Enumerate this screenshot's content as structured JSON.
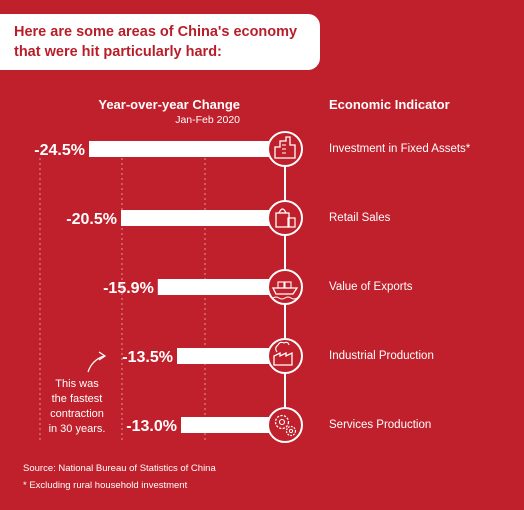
{
  "title": {
    "line1": "Here are some areas of China's economy",
    "line2": "that were hit particularly hard:"
  },
  "headers": {
    "change": "Year-over-year Change",
    "period": "Jan-Feb 2020",
    "indicator": "Economic Indicator"
  },
  "colors": {
    "background": "#c0202b",
    "bar": "#ffffff",
    "title_text": "#b81e2a"
  },
  "chart_data": {
    "type": "bar",
    "orientation": "horizontal",
    "categories": [
      "Investment in Fixed Assets*",
      "Retail Sales",
      "Value of Exports",
      "Industrial Production",
      "Services Production"
    ],
    "values": [
      -24.5,
      -20.5,
      -15.9,
      -13.5,
      -13.0
    ],
    "value_labels": [
      "-24.5%",
      "-20.5%",
      "-15.9%",
      "-13.5%",
      "-13.0%"
    ],
    "icons": [
      "buildings-icon",
      "shopping-bag-icon",
      "cargo-ship-icon",
      "factory-icon",
      "gears-icon"
    ],
    "unit": "%",
    "xlim": [
      -30,
      0
    ],
    "grid": true,
    "legend": "none"
  },
  "note": {
    "lines": [
      "This was",
      "the fastest",
      "contraction",
      "in 30 years."
    ]
  },
  "footer": {
    "source": "Source: National Bureau of Statistics of China",
    "footnote": "* Excluding rural household investment"
  }
}
